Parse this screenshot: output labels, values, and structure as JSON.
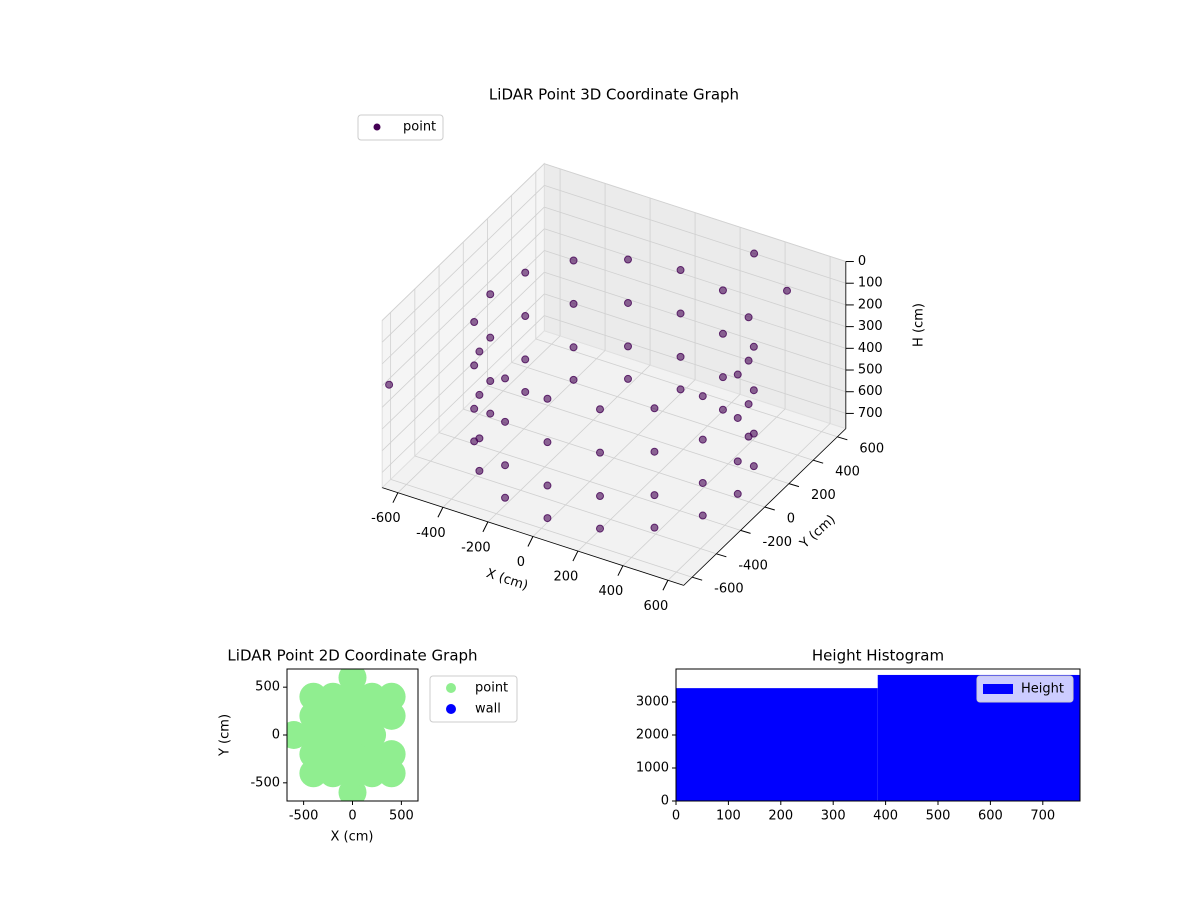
{
  "chart_data": [
    {
      "type": "scatter3d",
      "title": "LiDAR Point 3D Coordinate Graph",
      "xlabel": "X (cm)",
      "ylabel": "Y (cm)",
      "zlabel": "H (cm)",
      "series": [
        {
          "name": "point",
          "color": "#440154",
          "x": [
            550,
            508,
            389,
            211,
            0,
            -211,
            -389,
            -508,
            -550,
            -508,
            -389,
            -211,
            0,
            211,
            389,
            508,
            550,
            508,
            389,
            211,
            0,
            -211,
            -389,
            -508,
            -550,
            -508,
            -389,
            -211,
            0,
            211,
            389,
            508,
            550,
            508,
            389,
            211,
            0,
            -211,
            -389,
            -508,
            -550,
            -508,
            -389,
            -211,
            0,
            211,
            389,
            508,
            550,
            508,
            389,
            211,
            0,
            -211,
            -389,
            -508,
            -550,
            -508,
            -389,
            -211,
            0,
            211,
            389,
            508,
            300,
            500,
            -650
          ],
          "y": [
            0,
            211,
            389,
            508,
            550,
            508,
            389,
            211,
            0,
            -211,
            -389,
            -508,
            -550,
            -508,
            -389,
            -211,
            0,
            211,
            389,
            508,
            550,
            508,
            389,
            211,
            0,
            -211,
            -389,
            -508,
            -550,
            -508,
            -389,
            -211,
            0,
            211,
            389,
            508,
            550,
            508,
            389,
            211,
            0,
            -211,
            -389,
            -508,
            -550,
            -508,
            -389,
            -211,
            0,
            211,
            389,
            508,
            550,
            508,
            389,
            211,
            0,
            -211,
            -389,
            -508,
            -550,
            -508,
            -389,
            -211,
            600,
            500,
            -650
          ],
          "z": [
            200,
            200,
            200,
            200,
            200,
            200,
            200,
            200,
            200,
            200,
            200,
            200,
            200,
            200,
            200,
            200,
            400,
            400,
            400,
            400,
            400,
            400,
            400,
            400,
            400,
            400,
            400,
            400,
            400,
            400,
            400,
            400,
            600,
            600,
            600,
            600,
            600,
            600,
            600,
            600,
            600,
            600,
            600,
            600,
            600,
            600,
            600,
            600,
            750,
            750,
            750,
            750,
            750,
            750,
            750,
            750,
            750,
            750,
            750,
            750,
            750,
            750,
            750,
            750,
            50,
            100,
            300
          ]
        }
      ],
      "xlim": [
        -670,
        670
      ],
      "ylim": [
        -670,
        670
      ],
      "zlim": [
        0,
        770
      ],
      "zinverted": true,
      "xticks": [
        -600,
        -400,
        -200,
        0,
        200,
        400,
        600
      ],
      "yticks": [
        -600,
        -400,
        -200,
        0,
        200,
        400,
        600
      ],
      "zticks": [
        0,
        100,
        200,
        300,
        400,
        500,
        600,
        700
      ],
      "legend": "upper left"
    },
    {
      "type": "scatter",
      "title": "LiDAR Point 2D Coordinate Graph",
      "xlabel": "X (cm)",
      "ylabel": "Y (cm)",
      "series": [
        {
          "name": "point",
          "color": "#90ee90",
          "x": [
            -600,
            -400,
            -400,
            -400,
            -400,
            -400,
            -200,
            -200,
            -200,
            -200,
            -200,
            0,
            0,
            0,
            0,
            0,
            0,
            0,
            200,
            200,
            200,
            200,
            200,
            400,
            400,
            400,
            400
          ],
          "y": [
            0,
            -400,
            -200,
            0,
            200,
            400,
            -400,
            -200,
            0,
            200,
            400,
            -600,
            -400,
            -200,
            0,
            200,
            400,
            600,
            -400,
            -200,
            0,
            200,
            400,
            -400,
            -200,
            200,
            400
          ]
        },
        {
          "name": "wall",
          "color": "#0000ff",
          "x": [],
          "y": []
        }
      ],
      "xlim": [
        -670,
        670
      ],
      "ylim": [
        -690,
        690
      ],
      "xticks": [
        -500,
        0,
        500
      ],
      "yticks": [
        -500,
        0,
        500
      ],
      "legend": "outside right"
    },
    {
      "type": "histogram",
      "title": "Height Histogram",
      "bins": [
        0,
        385,
        771
      ],
      "counts": [
        3420,
        3820
      ],
      "series_name": "Height",
      "color": "#0000ff",
      "xlim": [
        0,
        771
      ],
      "ylim": [
        0,
        4000
      ],
      "xticks": [
        0,
        100,
        200,
        300,
        400,
        500,
        600,
        700
      ],
      "yticks": [
        0,
        1000,
        2000,
        3000
      ],
      "legend": "upper right"
    }
  ]
}
